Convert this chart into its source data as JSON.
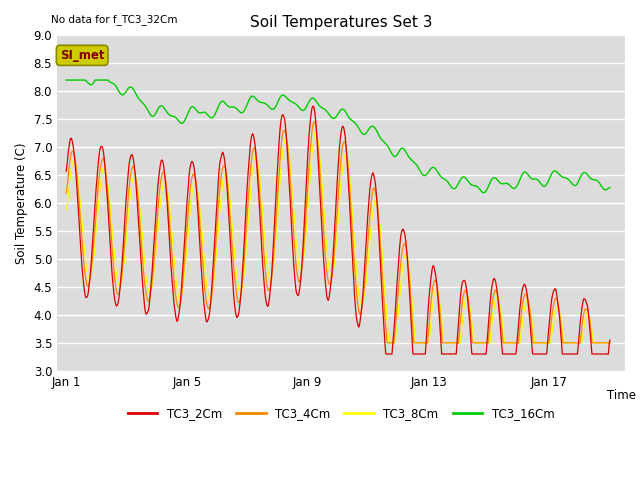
{
  "title": "Soil Temperatures Set 3",
  "top_left_note": "No data for f_TC3_32Cm",
  "xlabel": "Time",
  "ylabel": "Soil Temperature (C)",
  "ylim": [
    3.0,
    9.0
  ],
  "yticks": [
    3.0,
    3.5,
    4.0,
    4.5,
    5.0,
    5.5,
    6.0,
    6.5,
    7.0,
    7.5,
    8.0,
    8.5,
    9.0
  ],
  "xtick_labels": [
    "Jan 1",
    "Jan 5",
    "Jan 9",
    "Jan 13",
    "Jan 17"
  ],
  "xtick_positions": [
    0,
    4,
    8,
    12,
    16
  ],
  "xlim": [
    -0.3,
    18.5
  ],
  "legend_labels": [
    "TC3_2Cm",
    "TC3_4Cm",
    "TC3_8Cm",
    "TC3_16Cm"
  ],
  "legend_colors": [
    "#dd0000",
    "#ff8800",
    "#ffff00",
    "#00cc00"
  ],
  "bg_color": "#dcdcdc",
  "si_met_label": "SI_met",
  "si_met_bg": "#cccc00",
  "si_met_fg": "#800000"
}
